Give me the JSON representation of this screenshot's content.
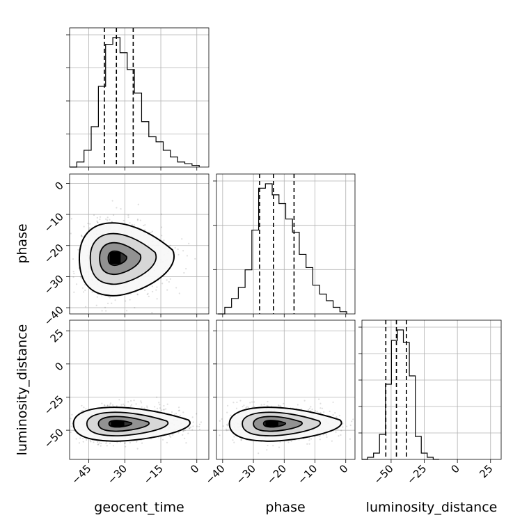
{
  "chart_data": {
    "type": "corner",
    "grid": true,
    "parameters": [
      "geocent_time",
      "phase",
      "luminosity_distance"
    ],
    "ticks": {
      "geocent_time": [
        "−45",
        "−30",
        "−15",
        "0"
      ],
      "phase": [
        "−40",
        "−30",
        "−20",
        "−10",
        "0"
      ],
      "luminosity_distance_x": [
        "−50",
        "−25",
        "0",
        "25"
      ],
      "luminosity_distance_y": [
        "25",
        "0",
        "−25",
        "−50"
      ]
    },
    "ranges": {
      "geocent_time": [
        -53,
        5
      ],
      "phase": [
        -42,
        3
      ],
      "luminosity_distance": [
        -72,
        33
      ]
    },
    "histograms": {
      "geocent_time": {
        "bins": [
          -51.5,
          -48.5,
          -45.5,
          -42.5,
          -39.5,
          -36.5,
          -33.5,
          -30.5,
          -27.5,
          -24.5,
          -21.5,
          -18.5,
          -15.5,
          -12.5,
          -9.5,
          -6.5,
          -3.5,
          -0.5
        ],
        "counts": [
          0,
          3,
          10,
          24,
          48,
          73,
          77,
          68,
          58,
          44,
          27,
          18,
          15,
          10,
          6,
          3,
          2,
          1
        ],
        "quantiles": [
          -38.5,
          -33.5,
          -26.5
        ]
      },
      "phase": {
        "bins": [
          -40.4,
          -38.2,
          -36.0,
          -33.8,
          -31.6,
          -29.4,
          -27.2,
          -25.0,
          -22.8,
          -20.6,
          -18.4,
          -16.2,
          -14.0,
          -11.8,
          -9.6,
          -7.4,
          -5.2,
          -3.0,
          -0.8
        ],
        "counts": [
          0,
          3,
          7,
          12,
          20,
          38,
          57,
          59,
          54,
          50,
          43,
          37,
          27,
          21,
          13,
          9,
          6,
          3,
          1
        ],
        "quantiles": [
          -28.0,
          -23.5,
          -16.8
        ]
      },
      "luminosity_distance": {
        "bins": [
          -70.0,
          -65.5,
          -61.0,
          -56.5,
          -52.0,
          -47.5,
          -43.0,
          -38.5,
          -34.0,
          -29.5,
          -25.0,
          -20.5,
          -16.0
        ],
        "counts": [
          0,
          1,
          3,
          12,
          36,
          57,
          62,
          56,
          40,
          11,
          3,
          1,
          0
        ],
        "quantiles": [
          -54.0,
          -46.0,
          -38.5
        ]
      }
    },
    "joint": [
      {
        "x": "geocent_time",
        "y": "phase",
        "center": [
          -34,
          -24
        ],
        "spread": [
          6.5,
          5.5
        ]
      },
      {
        "x": "geocent_time",
        "y": "luminosity_distance",
        "center": [
          -33,
          -45
        ],
        "spread": [
          8,
          6
        ]
      },
      {
        "x": "phase",
        "y": "luminosity_distance",
        "center": [
          -24,
          -45
        ],
        "spread": [
          6,
          6
        ]
      }
    ]
  }
}
